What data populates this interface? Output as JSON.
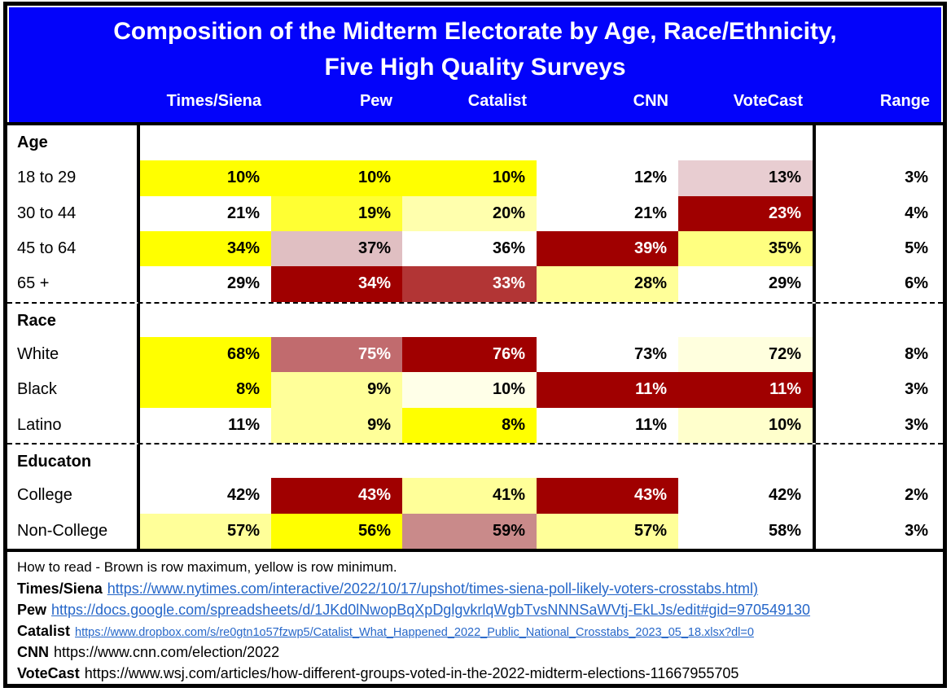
{
  "title": {
    "line1": "Composition of the Midterm Electorate by Age, Race/Ethnicity,",
    "line2": "Five High Quality Surveys"
  },
  "legend": "How to read - Brown is row maximum, yellow is row minimum.",
  "colors": {
    "header_bg": "#0303fa",
    "row_max_brown": "#A00000",
    "row_min_yellow": "#FFFF00",
    "link": "#2667c9"
  },
  "chart_data": {
    "type": "table",
    "columns": [
      "Times/Siena",
      "Pew",
      "Catalist",
      "CNN",
      "VoteCast",
      "Range"
    ],
    "sections": [
      {
        "label": "Age",
        "rows": [
          {
            "label": "18 to 29",
            "values": [
              10,
              10,
              10,
              12,
              13
            ],
            "range_value": 3,
            "range": "3%",
            "cells": [
              {
                "text": "10%",
                "bg": "#FFFF00",
                "fg": "#000000"
              },
              {
                "text": "10%",
                "bg": "#FFFF00",
                "fg": "#000000"
              },
              {
                "text": "10%",
                "bg": "#FFFF00",
                "fg": "#000000"
              },
              {
                "text": "12%",
                "bg": "#FFFFFF",
                "fg": "#000000"
              },
              {
                "text": "13%",
                "bg": "#E8CDD1",
                "fg": "#000000"
              }
            ]
          },
          {
            "label": "30 to 44",
            "values": [
              21,
              19,
              20,
              21,
              23
            ],
            "range_value": 4,
            "range": "4%",
            "cells": [
              {
                "text": "21%",
                "bg": "#FFFFFF",
                "fg": "#000000"
              },
              {
                "text": "19%",
                "bg": "#FFFF33",
                "fg": "#000000"
              },
              {
                "text": "20%",
                "bg": "#FFFFAD",
                "fg": "#000000"
              },
              {
                "text": "21%",
                "bg": "#FFFFFF",
                "fg": "#000000"
              },
              {
                "text": "23%",
                "bg": "#A00000",
                "fg": "#FFFFFF"
              }
            ]
          },
          {
            "label": "45 to 64",
            "values": [
              34,
              37,
              36,
              39,
              35
            ],
            "range_value": 5,
            "range": "5%",
            "cells": [
              {
                "text": "34%",
                "bg": "#FFFF00",
                "fg": "#000000"
              },
              {
                "text": "37%",
                "bg": "#E0BFC2",
                "fg": "#000000"
              },
              {
                "text": "36%",
                "bg": "#FFFFFF",
                "fg": "#000000"
              },
              {
                "text": "39%",
                "bg": "#A00000",
                "fg": "#FFFFFF"
              },
              {
                "text": "35%",
                "bg": "#FFFF80",
                "fg": "#000000"
              }
            ]
          },
          {
            "label": "65 +",
            "values": [
              29,
              34,
              33,
              28,
              29
            ],
            "range_value": 6,
            "range": "6%",
            "cells": [
              {
                "text": "29%",
                "bg": "#FFFFFF",
                "fg": "#000000"
              },
              {
                "text": "34%",
                "bg": "#A00000",
                "fg": "#FFFFFF"
              },
              {
                "text": "33%",
                "bg": "#B23535",
                "fg": "#FFFFFF"
              },
              {
                "text": "28%",
                "bg": "#FFFF99",
                "fg": "#000000"
              },
              {
                "text": "29%",
                "bg": "#FFFFFF",
                "fg": "#000000"
              }
            ]
          }
        ]
      },
      {
        "label": "Race",
        "rows": [
          {
            "label": "White",
            "values": [
              68,
              75,
              76,
              73,
              72
            ],
            "range_value": 8,
            "range": "8%",
            "cells": [
              {
                "text": "68%",
                "bg": "#FFFF00",
                "fg": "#000000"
              },
              {
                "text": "75%",
                "bg": "#C16B6E",
                "fg": "#FFFFFF"
              },
              {
                "text": "76%",
                "bg": "#A00000",
                "fg": "#FFFFFF"
              },
              {
                "text": "73%",
                "bg": "#FFFFFF",
                "fg": "#000000"
              },
              {
                "text": "72%",
                "bg": "#FFFFDE",
                "fg": "#000000"
              }
            ]
          },
          {
            "label": "Black",
            "values": [
              8,
              9,
              10,
              11,
              11
            ],
            "range_value": 3,
            "range": "3%",
            "cells": [
              {
                "text": "8%",
                "bg": "#FFFF00",
                "fg": "#000000"
              },
              {
                "text": "9%",
                "bg": "#FFFF99",
                "fg": "#000000"
              },
              {
                "text": "10%",
                "bg": "#FFFFE8",
                "fg": "#000000"
              },
              {
                "text": "11%",
                "bg": "#A00000",
                "fg": "#FFFFFF"
              },
              {
                "text": "11%",
                "bg": "#A00000",
                "fg": "#FFFFFF"
              }
            ]
          },
          {
            "label": "Latino",
            "values": [
              11,
              9,
              8,
              11,
              10
            ],
            "range_value": 3,
            "range": "3%",
            "cells": [
              {
                "text": "11%",
                "bg": "#FFFFFF",
                "fg": "#000000"
              },
              {
                "text": "9%",
                "bg": "#FFFF99",
                "fg": "#000000"
              },
              {
                "text": "8%",
                "bg": "#FFFF00",
                "fg": "#000000"
              },
              {
                "text": "11%",
                "bg": "#FFFFFF",
                "fg": "#000000"
              },
              {
                "text": "10%",
                "bg": "#FFFFCC",
                "fg": "#000000"
              }
            ]
          }
        ]
      },
      {
        "label": "Educaton",
        "rows": [
          {
            "label": "College",
            "values": [
              42,
              43,
              41,
              43,
              42
            ],
            "range_value": 2,
            "range": "2%",
            "cells": [
              {
                "text": "42%",
                "bg": "#FFFFFF",
                "fg": "#000000"
              },
              {
                "text": "43%",
                "bg": "#A00000",
                "fg": "#FFFFFF"
              },
              {
                "text": "41%",
                "bg": "#FFFF99",
                "fg": "#000000"
              },
              {
                "text": "43%",
                "bg": "#A00000",
                "fg": "#FFFFFF"
              },
              {
                "text": "42%",
                "bg": "#FFFFFF",
                "fg": "#000000"
              }
            ]
          },
          {
            "label": "Non-College",
            "values": [
              57,
              56,
              59,
              57,
              58
            ],
            "range_value": 3,
            "range": "3%",
            "cells": [
              {
                "text": "57%",
                "bg": "#FFFF99",
                "fg": "#000000"
              },
              {
                "text": "56%",
                "bg": "#FFFF00",
                "fg": "#000000"
              },
              {
                "text": "59%",
                "bg": "#C98A8A",
                "fg": "#000000"
              },
              {
                "text": "57%",
                "bg": "#FFFF99",
                "fg": "#000000"
              },
              {
                "text": "58%",
                "bg": "#FFFFFF",
                "fg": "#000000"
              }
            ]
          }
        ]
      }
    ]
  },
  "sources": [
    {
      "name": "Times/Siena",
      "url": "https://www.nytimes.com/interactive/2022/10/17/upshot/times-siena-poll-likely-voters-crosstabs.html)",
      "styled_as_link": true,
      "small": false
    },
    {
      "name": "Pew",
      "url": "https://docs.google.com/spreadsheets/d/1JKd0lNwopBqXpDglgvkrlqWgbTvsNNNSaWVtj-EkLJs/edit#gid=970549130",
      "styled_as_link": true,
      "small": false
    },
    {
      "name": "Catalist",
      "url": "https://www.dropbox.com/s/re0gtn1o57fzwp5/Catalist_What_Happened_2022_Public_National_Crosstabs_2023_05_18.xlsx?dl=0",
      "styled_as_link": true,
      "small": true
    },
    {
      "name": "CNN",
      "url": "https://www.cnn.com/election/2022",
      "styled_as_link": false,
      "small": false
    },
    {
      "name": "VoteCast",
      "url": "https://www.wsj.com/articles/how-different-groups-voted-in-the-2022-midterm-elections-11667955705",
      "styled_as_link": false,
      "small": false
    }
  ]
}
